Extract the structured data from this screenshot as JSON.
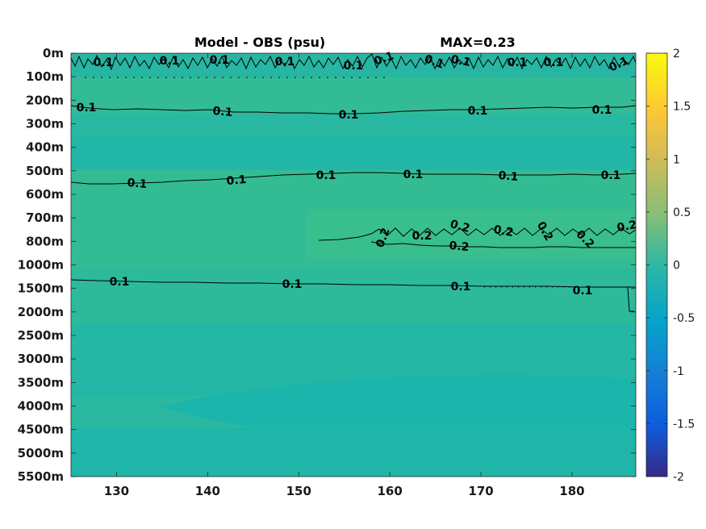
{
  "chart_data": {
    "type": "heatmap",
    "title": "Model - OBS (psu)",
    "annotation": "MAX=0.23",
    "x_ticks": [
      130,
      140,
      150,
      160,
      170,
      180
    ],
    "xlim": [
      125,
      187
    ],
    "y_ticks": [
      "0m",
      "100m",
      "200m",
      "300m",
      "400m",
      "500m",
      "600m",
      "700m",
      "800m",
      "1000m",
      "1500m",
      "2000m",
      "2500m",
      "3000m",
      "3500m",
      "4000m",
      "4500m",
      "5000m",
      "5500m"
    ],
    "colorbar": {
      "range": [
        -2,
        2
      ],
      "ticks": [
        "2",
        "1.5",
        "1",
        "0.5",
        "0",
        "-0.5",
        "-1",
        "-1.5",
        "-2"
      ],
      "colormap": "parula"
    },
    "contours": [
      {
        "depth": "50m",
        "level": 0.1,
        "labels": [
          "0.1",
          "0.1",
          "0.1",
          "0.1",
          "0.1",
          "0.1",
          "0.1",
          "0.1",
          "0.1",
          "0.1",
          "0.1"
        ]
      },
      {
        "depth": "250m",
        "level": 0.1,
        "labels": [
          "0.1",
          "0.1",
          "0.1",
          "0.1",
          "0.1"
        ]
      },
      {
        "depth": "550m",
        "level": 0.1,
        "labels": [
          "0.1",
          "0.1",
          "0.1",
          "0.1",
          "0.1",
          "0.1"
        ]
      },
      {
        "depth": "800m",
        "level": 0.2,
        "labels": [
          "0.2",
          "0.2",
          "0.2",
          "0.2",
          "0.2",
          "0.2",
          "0.2",
          "0.2"
        ]
      },
      {
        "depth": "1500m",
        "level": 0.1,
        "labels": [
          "0.1",
          "0.1",
          "0.1",
          "0.1"
        ]
      }
    ],
    "colors": {
      "field_main": "#2fbb96",
      "field_light": "#3dbf8e",
      "field_deep": "#17b7a9"
    }
  }
}
